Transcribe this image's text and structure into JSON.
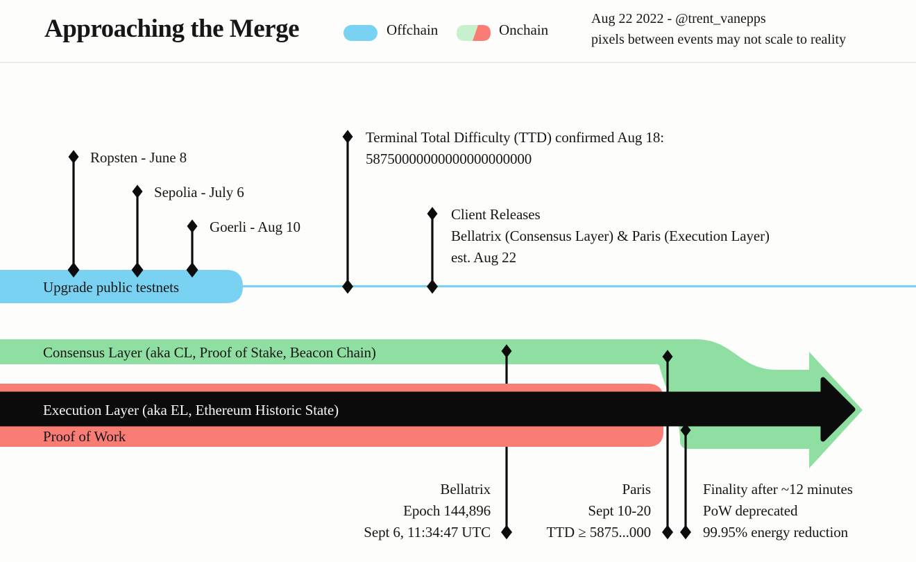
{
  "header": {
    "title": "Approaching the Merge",
    "legend": {
      "offchain_label": "Offchain",
      "onchain_label": "Onchain"
    },
    "credit": {
      "line1": "Aug 22 2022 - @trent_vanepps",
      "line2": "pixels between events may not scale to reality"
    }
  },
  "colors": {
    "offchain_blue": "#79d2f2",
    "onchain_green": "#90dfa2",
    "onchain_green_light": "#c7f1cc",
    "onchain_red": "#fa7d75",
    "ink": "#0b0b0b"
  },
  "diagram": {
    "testnet_track": {
      "label": "Upgrade public testnets",
      "events": [
        {
          "label": "Ropsten - June 8"
        },
        {
          "label": "Sepolia - July 6"
        },
        {
          "label": "Goerli - Aug 10"
        }
      ]
    },
    "ttd_event": {
      "line1": "Terminal Total Difficulty (TTD) confirmed Aug 18:",
      "line2": "58750000000000000000000"
    },
    "client_release_event": {
      "line1": "Client Releases",
      "line2": "Bellatrix (Consensus Layer) & Paris (Execution Layer)",
      "line3": "est. Aug 22"
    },
    "consensus_track_label": "Consensus Layer (aka CL, Proof of Stake, Beacon Chain)",
    "execution_track_label": "Execution Layer (aka EL, Ethereum Historic State)",
    "pow_track_label": "Proof of Work",
    "bellatrix_event": {
      "line1": "Bellatrix",
      "line2": "Epoch 144,896",
      "line3": "Sept 6, 11:34:47 UTC"
    },
    "paris_event": {
      "line1": "Paris",
      "line2": "Sept 10-20",
      "line3": "TTD ≥ 5875...000"
    },
    "merge_result_event": {
      "line1": "Finality after ~12 minutes",
      "line2": "PoW deprecated",
      "line3": "99.95% energy reduction"
    }
  }
}
